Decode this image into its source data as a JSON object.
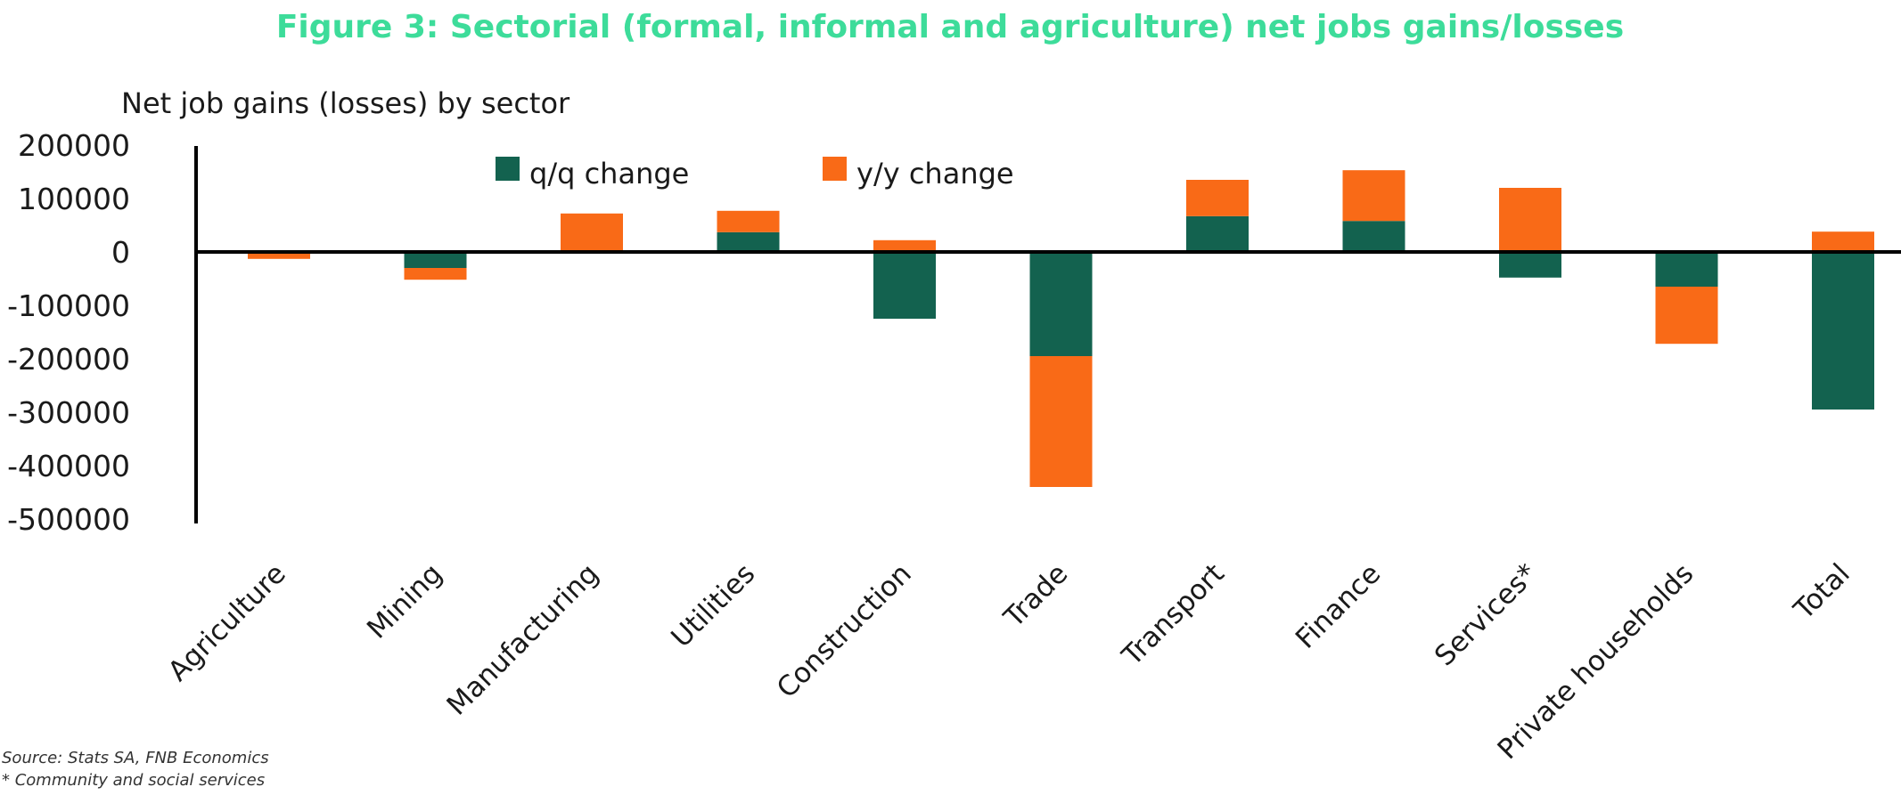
{
  "chart_data": {
    "type": "bar",
    "stacked": true,
    "title": "Figure 3: Sectorial (formal, informal and agriculture) net jobs gains/losses",
    "ylabel": "Net job gains (losses) by sector",
    "categories": [
      "Agriculture",
      "Mining",
      "Manufacturing",
      "Utilities",
      "Construction",
      "Trade",
      "Transport",
      "Finance",
      "Services*",
      "Private households",
      "Total"
    ],
    "series": [
      {
        "name": "q/q change",
        "color": "#13624f",
        "values": [
          0,
          -30000,
          0,
          37000,
          -125000,
          -195000,
          67000,
          58000,
          -48000,
          -65000,
          -295000
        ]
      },
      {
        "name": "y/y change",
        "color": "#f96a17",
        "values": [
          -13000,
          -22000,
          72000,
          40000,
          22000,
          -245000,
          68000,
          95000,
          120000,
          -107000,
          38000
        ]
      }
    ],
    "yticks": [
      "200000",
      "100000",
      "0",
      "-100000",
      "-200000",
      "-300000",
      "-400000",
      "-500000"
    ],
    "ytick_values": [
      200000,
      100000,
      0,
      -100000,
      -200000,
      -300000,
      -400000,
      -500000
    ],
    "ylim": [
      -500000,
      200000
    ],
    "grid": false,
    "legend_position": "top"
  },
  "colors": {
    "title": "#3ddc9a",
    "axis": "#000000"
  },
  "notes": {
    "source": "Source: Stats SA, FNB Economics",
    "footnote": "* Community and social services"
  }
}
